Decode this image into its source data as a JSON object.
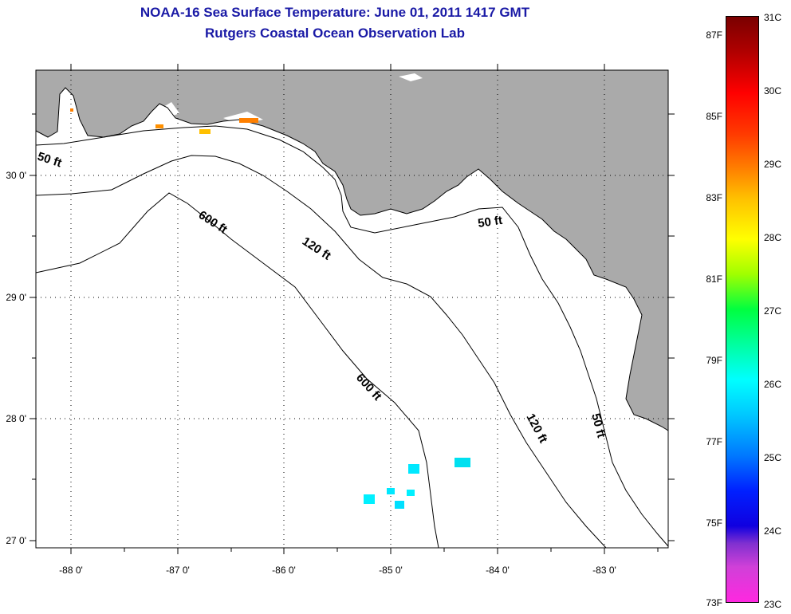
{
  "title": {
    "line1": "NOAA-16 Sea Surface Temperature:  June 01, 2011 1417 GMT",
    "line2": "Rutgers Coastal Ocean Observation Lab"
  },
  "map": {
    "land_color": "#aaaaaa",
    "water_color": "#ffffff",
    "longitude_labels": [
      "-88 0'",
      "-87 0'",
      "-86 0'",
      "-85 0'",
      "-84 0'",
      "-83 0'"
    ],
    "latitude_labels": [
      "30 0'",
      "29 0'",
      "28 0'",
      "27 0'"
    ],
    "contour_labels": {
      "c50_west": "50 ft",
      "c600_north": "600 ft",
      "c120_north": "120 ft",
      "c50_east": "50 ft",
      "c600_south": "600 ft",
      "c120_south": "120 ft",
      "c50_south": "50 ft"
    }
  },
  "colorbar": {
    "fahrenheit_labels": [
      "87F",
      "85F",
      "83F",
      "81F",
      "79F",
      "77F",
      "75F",
      "73F"
    ],
    "celsius_labels": [
      "31C",
      "30C",
      "29C",
      "28C",
      "27C",
      "26C",
      "25C",
      "24C",
      "23C"
    ]
  }
}
